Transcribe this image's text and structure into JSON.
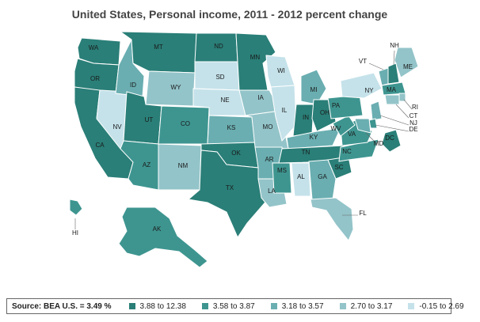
{
  "title": "United States, Personal income, 2011 - 2012 percent change",
  "colors": {
    "c1": "#2a7f78",
    "c2": "#3e9590",
    "c3": "#6aaeb1",
    "c4": "#93c4c9",
    "c5": "#c5e2ea",
    "border": "#ffffff"
  },
  "legend": {
    "source": "Source: BEA U.S. = 3.49 %",
    "items": [
      {
        "label": "3.88 to 12.38",
        "class": "c1"
      },
      {
        "label": "3.58 to 3.87",
        "class": "c2"
      },
      {
        "label": "3.18 to 3.57",
        "class": "c3"
      },
      {
        "label": "2.70 to 3.17",
        "class": "c4"
      },
      {
        "label": "-0.15 to 2.69",
        "class": "c5"
      }
    ]
  },
  "states": [
    {
      "abbr": "WA",
      "class": "c1"
    },
    {
      "abbr": "OR",
      "class": "c1"
    },
    {
      "abbr": "CA",
      "class": "c1"
    },
    {
      "abbr": "NV",
      "class": "c5"
    },
    {
      "abbr": "ID",
      "class": "c3"
    },
    {
      "abbr": "MT",
      "class": "c1"
    },
    {
      "abbr": "WY",
      "class": "c4"
    },
    {
      "abbr": "UT",
      "class": "c1"
    },
    {
      "abbr": "CO",
      "class": "c2"
    },
    {
      "abbr": "AZ",
      "class": "c2"
    },
    {
      "abbr": "NM",
      "class": "c4"
    },
    {
      "abbr": "ND",
      "class": "c1"
    },
    {
      "abbr": "SD",
      "class": "c5"
    },
    {
      "abbr": "NE",
      "class": "c5"
    },
    {
      "abbr": "KS",
      "class": "c3"
    },
    {
      "abbr": "OK",
      "class": "c1"
    },
    {
      "abbr": "TX",
      "class": "c1"
    },
    {
      "abbr": "MN",
      "class": "c1"
    },
    {
      "abbr": "IA",
      "class": "c4"
    },
    {
      "abbr": "MO",
      "class": "c4"
    },
    {
      "abbr": "AR",
      "class": "c3"
    },
    {
      "abbr": "LA",
      "class": "c4"
    },
    {
      "abbr": "WI",
      "class": "c5"
    },
    {
      "abbr": "IL",
      "class": "c5"
    },
    {
      "abbr": "MI",
      "class": "c3"
    },
    {
      "abbr": "IN",
      "class": "c1"
    },
    {
      "abbr": "OH",
      "class": "c1"
    },
    {
      "abbr": "KY",
      "class": "c3"
    },
    {
      "abbr": "TN",
      "class": "c1"
    },
    {
      "abbr": "MS",
      "class": "c2"
    },
    {
      "abbr": "AL",
      "class": "c5"
    },
    {
      "abbr": "GA",
      "class": "c3"
    },
    {
      "abbr": "FL",
      "class": "c4"
    },
    {
      "abbr": "SC",
      "class": "c1"
    },
    {
      "abbr": "NC",
      "class": "c2"
    },
    {
      "abbr": "VA",
      "class": "c2"
    },
    {
      "abbr": "WV",
      "class": "c2"
    },
    {
      "abbr": "PA",
      "class": "c2"
    },
    {
      "abbr": "NY",
      "class": "c5"
    },
    {
      "abbr": "ME",
      "class": "c4"
    },
    {
      "abbr": "VT",
      "class": "c3"
    },
    {
      "abbr": "NH",
      "class": "c1"
    },
    {
      "abbr": "MA",
      "class": "c2"
    },
    {
      "abbr": "RI",
      "class": "c4"
    },
    {
      "abbr": "CT",
      "class": "c4"
    },
    {
      "abbr": "NJ",
      "class": "c3"
    },
    {
      "abbr": "DE",
      "class": "c2"
    },
    {
      "abbr": "MD",
      "class": "c3"
    },
    {
      "abbr": "DC",
      "class": "c1"
    },
    {
      "abbr": "AK",
      "class": "c2"
    },
    {
      "abbr": "HI",
      "class": "c2"
    }
  ]
}
